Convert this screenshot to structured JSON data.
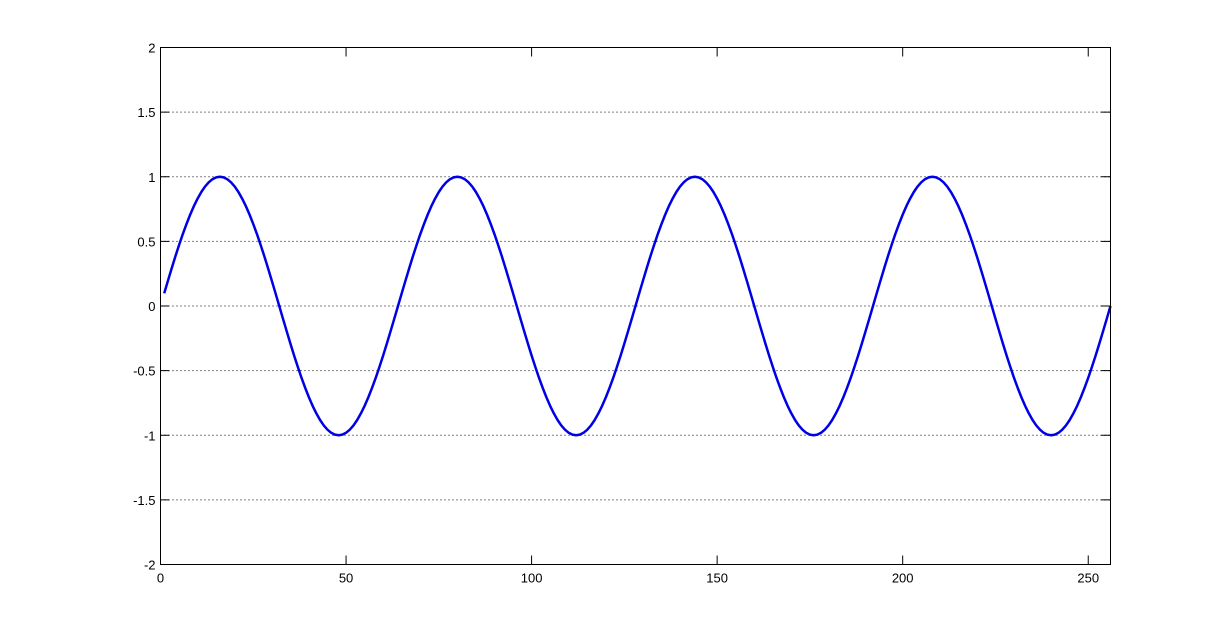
{
  "chart_data": {
    "type": "line",
    "title": "",
    "xlabel": "",
    "ylabel": "",
    "xlim": [
      0,
      256
    ],
    "ylim": [
      -2,
      2
    ],
    "xticks": [
      "0",
      "50",
      "100",
      "150",
      "200",
      "250"
    ],
    "yticks": [
      "2",
      "1.5",
      "1",
      "0.5",
      "0",
      "-0.5",
      "-1",
      "-1.5",
      "-2"
    ],
    "ygrid": true,
    "grid_style": "dotted",
    "line_color": "#0000e6",
    "series": [
      {
        "x_start": 1,
        "x_step": 1,
        "y": [
          0.098,
          0.195,
          0.29,
          0.383,
          0.471,
          0.556,
          0.634,
          0.707,
          0.773,
          0.831,
          0.882,
          0.924,
          0.957,
          0.981,
          0.995,
          1,
          0.995,
          0.981,
          0.957,
          0.924,
          0.882,
          0.831,
          0.773,
          0.707,
          0.634,
          0.556,
          0.471,
          0.383,
          0.29,
          0.195,
          0.098,
          0,
          -0.098,
          -0.195,
          -0.29,
          -0.383,
          -0.471,
          -0.556,
          -0.634,
          -0.707,
          -0.773,
          -0.831,
          -0.882,
          -0.924,
          -0.957,
          -0.981,
          -0.995,
          -1,
          -0.995,
          -0.981,
          -0.957,
          -0.924,
          -0.882,
          -0.831,
          -0.773,
          -0.707,
          -0.634,
          -0.556,
          -0.471,
          -0.383,
          -0.29,
          -0.195,
          -0.098,
          0,
          0.098,
          0.195,
          0.29,
          0.383,
          0.471,
          0.556,
          0.634,
          0.707,
          0.773,
          0.831,
          0.882,
          0.924,
          0.957,
          0.981,
          0.995,
          1,
          0.995,
          0.981,
          0.957,
          0.924,
          0.882,
          0.831,
          0.773,
          0.707,
          0.634,
          0.556,
          0.471,
          0.383,
          0.29,
          0.195,
          0.098,
          0,
          -0.098,
          -0.195,
          -0.29,
          -0.383,
          -0.471,
          -0.556,
          -0.634,
          -0.707,
          -0.773,
          -0.831,
          -0.882,
          -0.924,
          -0.957,
          -0.981,
          -0.995,
          -1,
          -0.995,
          -0.981,
          -0.957,
          -0.924,
          -0.882,
          -0.831,
          -0.773,
          -0.707,
          -0.634,
          -0.556,
          -0.471,
          -0.383,
          -0.29,
          -0.195,
          -0.098,
          0,
          0.098,
          0.195,
          0.29,
          0.383,
          0.471,
          0.556,
          0.634,
          0.707,
          0.773,
          0.831,
          0.882,
          0.924,
          0.957,
          0.981,
          0.995,
          1,
          0.995,
          0.981,
          0.957,
          0.924,
          0.882,
          0.831,
          0.773,
          0.707,
          0.634,
          0.556,
          0.471,
          0.383,
          0.29,
          0.195,
          0.098,
          0,
          -0.098,
          -0.195,
          -0.29,
          -0.383,
          -0.471,
          -0.556,
          -0.634,
          -0.707,
          -0.773,
          -0.831,
          -0.882,
          -0.924,
          -0.957,
          -0.981,
          -0.995,
          -1,
          -0.995,
          -0.981,
          -0.957,
          -0.924,
          -0.882,
          -0.831,
          -0.773,
          -0.707,
          -0.634,
          -0.556,
          -0.471,
          -0.383,
          -0.29,
          -0.195,
          -0.098,
          0,
          0.098,
          0.195,
          0.29,
          0.383,
          0.471,
          0.556,
          0.634,
          0.707,
          0.773,
          0.831,
          0.882,
          0.924,
          0.957,
          0.981,
          0.995,
          1,
          0.995,
          0.981,
          0.957,
          0.924,
          0.882,
          0.831,
          0.773,
          0.707,
          0.634,
          0.556,
          0.471,
          0.383,
          0.29,
          0.195,
          0.098,
          0,
          -0.098,
          -0.195,
          -0.29,
          -0.383,
          -0.471,
          -0.556,
          -0.634,
          -0.707,
          -0.773,
          -0.831,
          -0.882,
          -0.924,
          -0.957,
          -0.981,
          -0.995,
          -1,
          -0.995,
          -0.981,
          -0.957,
          -0.924,
          -0.882,
          -0.831,
          -0.773,
          -0.707,
          -0.634,
          -0.556,
          -0.471,
          -0.383,
          -0.29,
          -0.195,
          -0.098,
          0
        ]
      }
    ]
  }
}
